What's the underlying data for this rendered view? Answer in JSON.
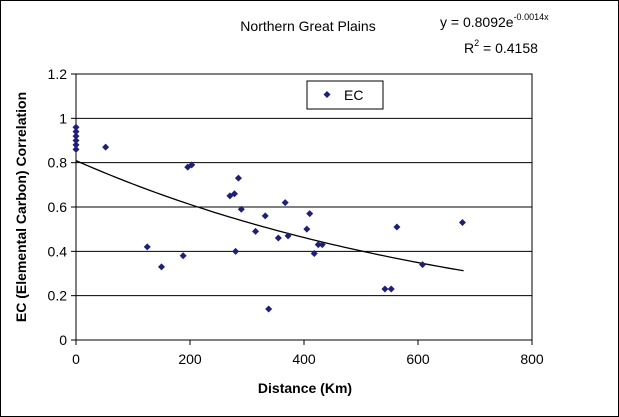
{
  "chart_data": {
    "type": "scatter",
    "title": "Northern Great Plains",
    "xlabel": "Distance (Km)",
    "ylabel": "EC (Elemental Carbon) Correlation",
    "xlim": [
      0,
      800
    ],
    "ylim": [
      0,
      1.2
    ],
    "xticks": [
      "0",
      "200",
      "400",
      "600",
      "800"
    ],
    "yticks": [
      "0",
      "0.2",
      "0.4",
      "0.6",
      "0.8",
      "1",
      "1.2"
    ],
    "grid": "horizontal",
    "legend": {
      "entries": [
        "EC"
      ],
      "placement": "top-center"
    },
    "colors": {
      "marker": "#1f1f7a",
      "trendline": "#000000",
      "grid": "#000000"
    },
    "trendline": {
      "type": "exponential",
      "a": 0.8092,
      "b": -0.0014,
      "x_range": [
        0,
        680
      ],
      "equation_main": "y = 0.8092e",
      "equation_exponent": "-0.0014x",
      "r2_label": "R",
      "r2_exponent": "2",
      "r2_value": " = 0.4158"
    },
    "series": [
      {
        "points": [
          [
            0,
            0.96
          ],
          [
            0,
            0.94
          ],
          [
            0,
            0.92
          ],
          [
            0,
            0.9
          ],
          [
            0,
            0.88
          ],
          [
            0,
            0.86
          ],
          [
            52,
            0.87
          ],
          [
            125,
            0.42
          ],
          [
            150,
            0.33
          ],
          [
            188,
            0.38
          ],
          [
            196,
            0.78
          ],
          [
            203,
            0.79
          ],
          [
            270,
            0.65
          ],
          [
            278,
            0.66
          ],
          [
            280,
            0.4
          ],
          [
            285,
            0.73
          ],
          [
            290,
            0.59
          ],
          [
            315,
            0.49
          ],
          [
            332,
            0.56
          ],
          [
            338,
            0.14
          ],
          [
            355,
            0.46
          ],
          [
            367,
            0.62
          ],
          [
            372,
            0.47
          ],
          [
            405,
            0.5
          ],
          [
            410,
            0.57
          ],
          [
            418,
            0.39
          ],
          [
            425,
            0.43
          ],
          [
            432,
            0.43
          ],
          [
            542,
            0.23
          ],
          [
            553,
            0.23
          ],
          [
            563,
            0.51
          ],
          [
            608,
            0.34
          ],
          [
            678,
            0.53
          ]
        ]
      }
    ]
  }
}
